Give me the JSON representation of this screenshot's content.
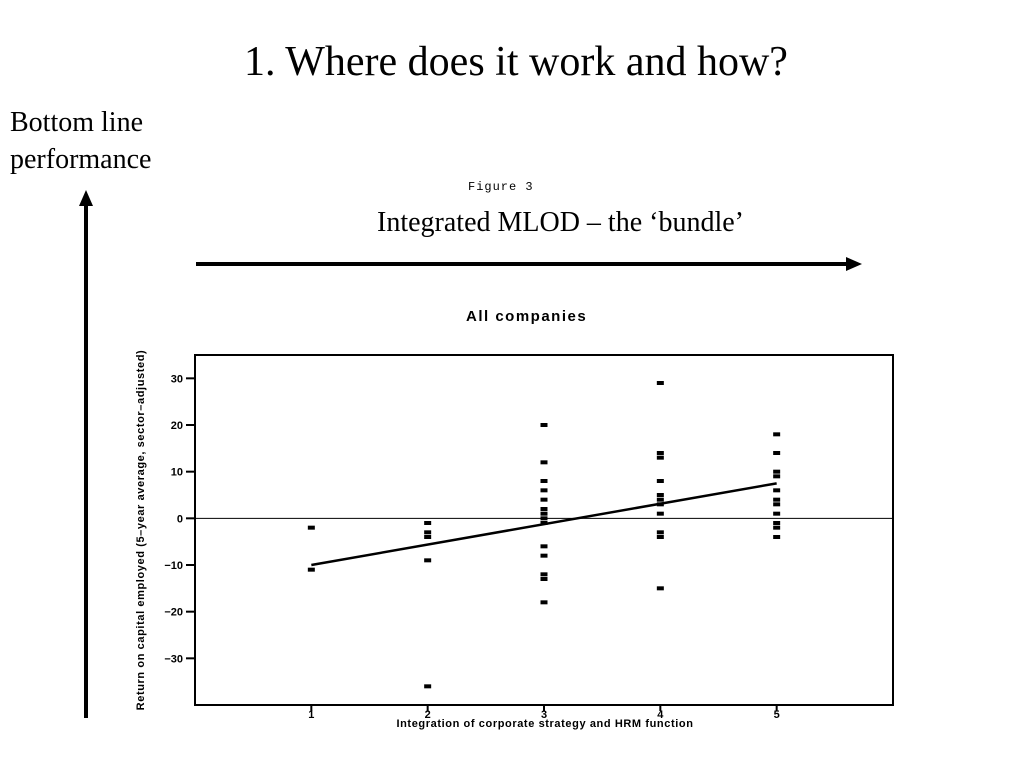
{
  "slide": {
    "title": "1. Where does it work and how?",
    "y_caption_line1": "Bottom line",
    "y_caption_line2": "performance",
    "x_caption": "Integrated MLOD – the ‘bundle’",
    "figure_label": "Figure 3"
  },
  "colors": {
    "ink": "#000000",
    "background": "#ffffff"
  },
  "chart_data": {
    "type": "scatter",
    "title": "All companies",
    "xlabel": "Integration of corporate strategy and HRM function",
    "ylabel": "Return on capital employed (5–year average, sector–adjusted)",
    "xlim": [
      0,
      6
    ],
    "ylim": [
      -40,
      35
    ],
    "xticks": [
      1,
      2,
      3,
      4,
      5
    ],
    "yticks": [
      30,
      20,
      10,
      0,
      -10,
      -20,
      -30
    ],
    "reference_line_y": 0,
    "grid": false,
    "legend": "none",
    "series": [
      {
        "points": [
          [
            1,
            -2
          ],
          [
            1,
            -11
          ],
          [
            2,
            -1
          ],
          [
            2,
            -3
          ],
          [
            2,
            -4
          ],
          [
            2,
            -9
          ],
          [
            2,
            -36
          ],
          [
            3,
            20
          ],
          [
            3,
            12
          ],
          [
            3,
            8
          ],
          [
            3,
            6
          ],
          [
            3,
            4
          ],
          [
            3,
            2
          ],
          [
            3,
            1
          ],
          [
            3,
            0
          ],
          [
            3,
            -1
          ],
          [
            3,
            -6
          ],
          [
            3,
            -8
          ],
          [
            3,
            -12
          ],
          [
            3,
            -13
          ],
          [
            3,
            -18
          ],
          [
            4,
            29
          ],
          [
            4,
            14
          ],
          [
            4,
            13
          ],
          [
            4,
            8
          ],
          [
            4,
            5
          ],
          [
            4,
            4
          ],
          [
            4,
            3
          ],
          [
            4,
            1
          ],
          [
            4,
            -3
          ],
          [
            4,
            -4
          ],
          [
            4,
            -15
          ],
          [
            5,
            18
          ],
          [
            5,
            14
          ],
          [
            5,
            10
          ],
          [
            5,
            9
          ],
          [
            5,
            6
          ],
          [
            5,
            4
          ],
          [
            5,
            3
          ],
          [
            5,
            1
          ],
          [
            5,
            -1
          ],
          [
            5,
            -2
          ],
          [
            5,
            -4
          ]
        ]
      }
    ],
    "trend_line": [
      [
        1,
        -10
      ],
      [
        5,
        7.5
      ]
    ]
  }
}
